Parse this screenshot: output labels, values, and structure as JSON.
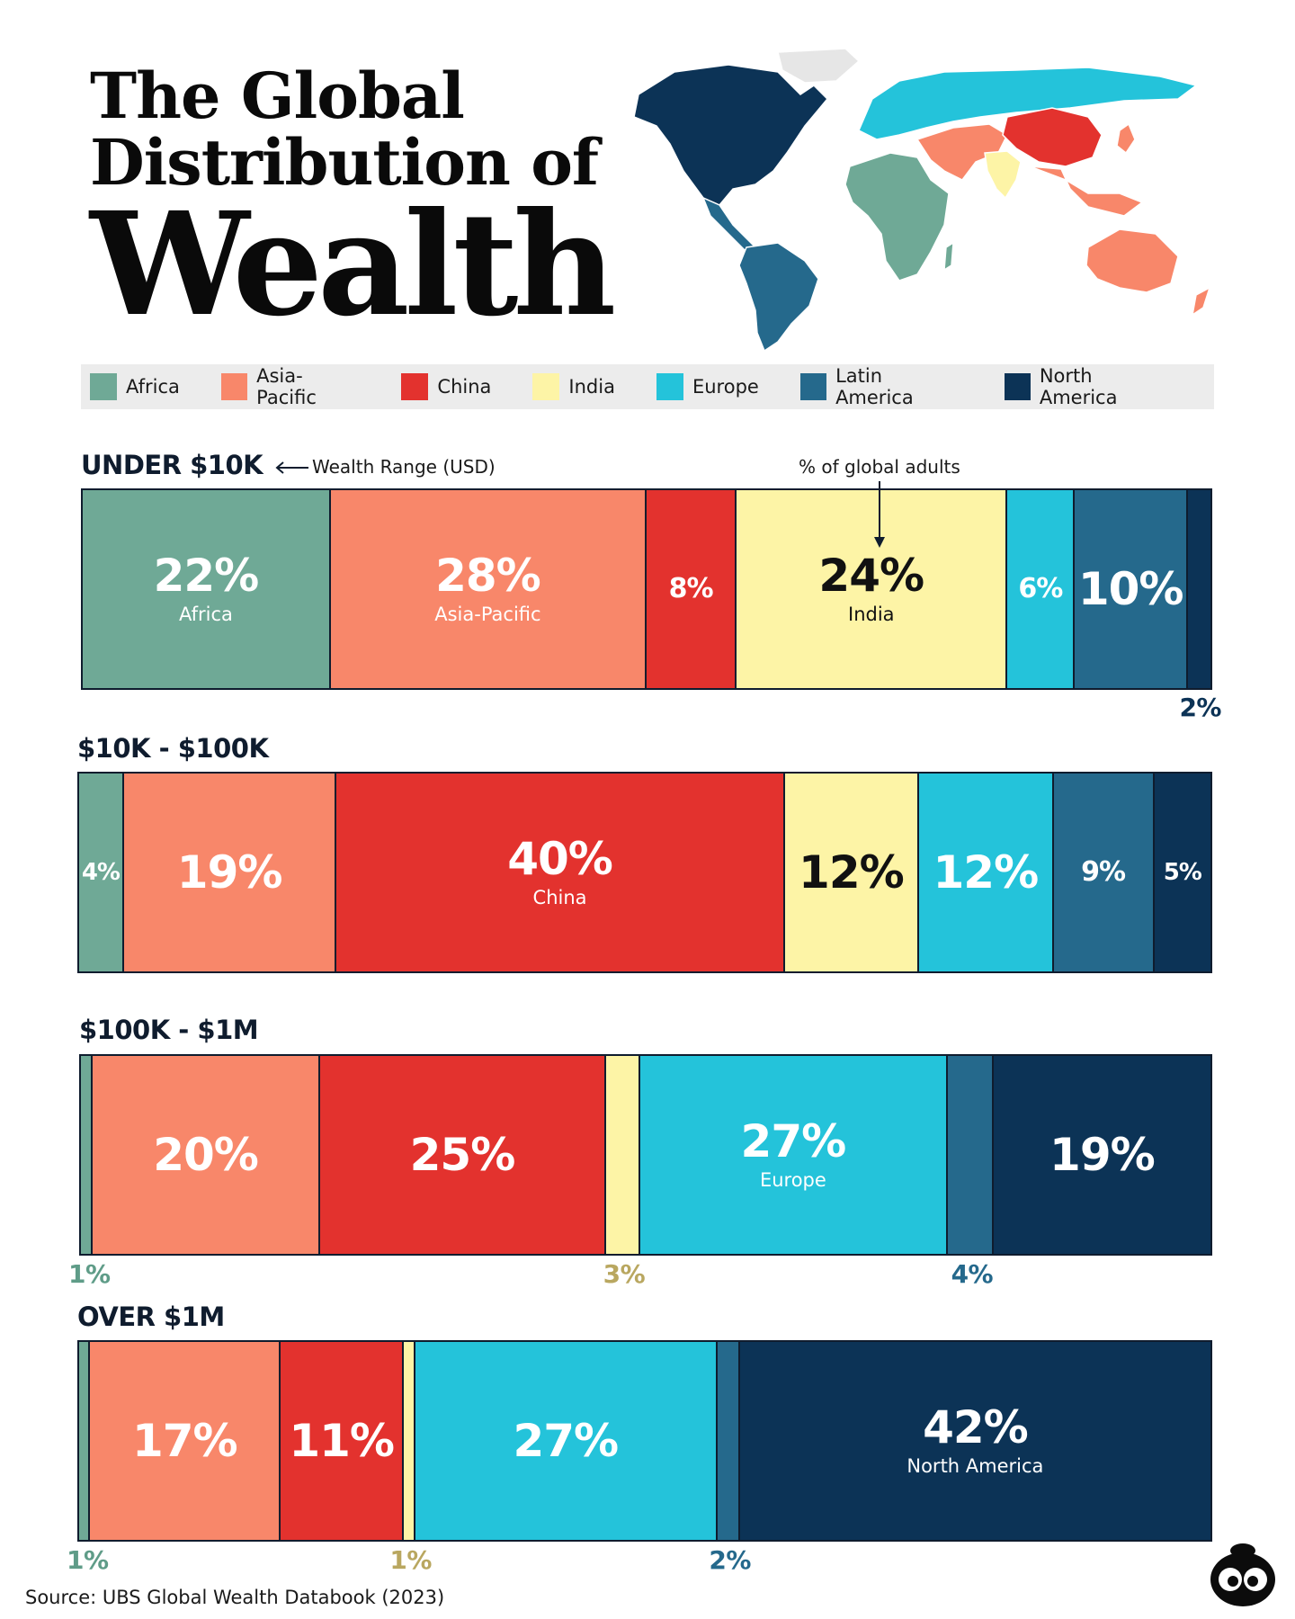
{
  "header": {
    "title_line1": "The Global",
    "title_line2": "Distribution of",
    "title_line3": "Wealth"
  },
  "colors": {
    "Africa": "#6fa996",
    "Asia-Pacific": "#f8876a",
    "China": "#e3322e",
    "India": "#fdf4a6",
    "Europe": "#24c3da",
    "Latin America": "#25698c",
    "North America": "#0c3356",
    "grey": "#e6e6e6"
  },
  "legend": [
    {
      "label": "Africa",
      "color": "#6fa996"
    },
    {
      "label": "Asia-Pacific",
      "color": "#f8876a"
    },
    {
      "label": "China",
      "color": "#e3322e"
    },
    {
      "label": "India",
      "color": "#fdf4a6"
    },
    {
      "label": "Europe",
      "color": "#24c3da"
    },
    {
      "label": "Latin America",
      "color": "#25698c"
    },
    {
      "label": "North America",
      "color": "#0c3356"
    }
  ],
  "annotations": {
    "wealth_range": "Wealth Range (USD)",
    "pct_global": "% of global adults"
  },
  "chart_data": {
    "type": "bar",
    "orientation": "horizontal-stacked-100",
    "series_order": [
      "Africa",
      "Asia-Pacific",
      "China",
      "India",
      "Europe",
      "Latin America",
      "North America"
    ],
    "rows": [
      {
        "label": "UNDER $10K",
        "segments": [
          {
            "region": "Africa",
            "value": 22,
            "text": "22%",
            "name": "Africa"
          },
          {
            "region": "Asia-Pacific",
            "value": 28,
            "text": "28%",
            "name": "Asia-Pacific"
          },
          {
            "region": "China",
            "value": 8,
            "text": "8%"
          },
          {
            "region": "India",
            "value": 24,
            "text": "24%",
            "name": "India"
          },
          {
            "region": "Europe",
            "value": 6,
            "text": "6%"
          },
          {
            "region": "Latin America",
            "value": 10,
            "text": "10%"
          },
          {
            "region": "North America",
            "value": 2,
            "text": "2%",
            "outside": true
          }
        ]
      },
      {
        "label": "$10K - $100K",
        "segments": [
          {
            "region": "Africa",
            "value": 4,
            "text": "4%"
          },
          {
            "region": "Asia-Pacific",
            "value": 19,
            "text": "19%"
          },
          {
            "region": "China",
            "value": 40,
            "text": "40%",
            "name": "China"
          },
          {
            "region": "India",
            "value": 12,
            "text": "12%"
          },
          {
            "region": "Europe",
            "value": 12,
            "text": "12%"
          },
          {
            "region": "Latin America",
            "value": 9,
            "text": "9%"
          },
          {
            "region": "North America",
            "value": 5,
            "text": "5%"
          }
        ]
      },
      {
        "label": "$100K - $1M",
        "segments": [
          {
            "region": "Africa",
            "value": 1,
            "text": "1%",
            "outside": true
          },
          {
            "region": "Asia-Pacific",
            "value": 20,
            "text": "20%"
          },
          {
            "region": "China",
            "value": 25,
            "text": "25%"
          },
          {
            "region": "India",
            "value": 3,
            "text": "3%",
            "outside": true
          },
          {
            "region": "Europe",
            "value": 27,
            "text": "27%",
            "name": "Europe"
          },
          {
            "region": "Latin America",
            "value": 4,
            "text": "4%",
            "outside": true
          },
          {
            "region": "North America",
            "value": 19,
            "text": "19%"
          }
        ]
      },
      {
        "label": "OVER $1M",
        "segments": [
          {
            "region": "Africa",
            "value": 1,
            "text": "1%",
            "outside": true
          },
          {
            "region": "Asia-Pacific",
            "value": 17,
            "text": "17%"
          },
          {
            "region": "China",
            "value": 11,
            "text": "11%"
          },
          {
            "region": "India",
            "value": 1,
            "text": "1%",
            "outside": true
          },
          {
            "region": "Europe",
            "value": 27,
            "text": "27%"
          },
          {
            "region": "Latin America",
            "value": 2,
            "text": "2%",
            "outside": true
          },
          {
            "region": "North America",
            "value": 42,
            "text": "42%",
            "name": "North America"
          }
        ]
      }
    ]
  },
  "footer": {
    "source": "Source: UBS Global Wealth Databook (2023)"
  }
}
